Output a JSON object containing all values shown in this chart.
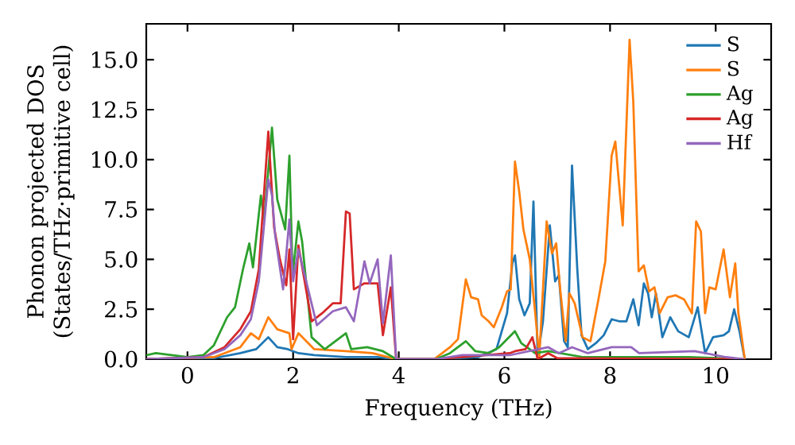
{
  "chart_data": {
    "type": "line",
    "xlabel": "Frequency (THz)",
    "ylabel": "Phonon projected DOS (States/THz·primitive cell)",
    "xlim": [
      -0.78,
      11.05
    ],
    "ylim": [
      0,
      16.8
    ],
    "xticks": [
      0,
      2,
      4,
      6,
      8,
      10
    ],
    "yticks": [
      {
        "value": 0,
        "label": "0.0"
      },
      {
        "value": 2.5,
        "label": "2.5"
      },
      {
        "value": 5,
        "label": "5.0"
      },
      {
        "value": 7.5,
        "label": "7.5"
      },
      {
        "value": 10,
        "label": "10.0"
      },
      {
        "value": 12.5,
        "label": "12.5"
      },
      {
        "value": 15,
        "label": "15.0"
      }
    ],
    "legend": "top right",
    "line_style": "solid",
    "series": [
      {
        "name": "S",
        "color": "#1f77b4",
        "x": [
          -0.78,
          0.5,
          1.0,
          1.3,
          1.53,
          1.7,
          1.9,
          2.1,
          2.4,
          3.0,
          3.6,
          3.95,
          4.7,
          5.5,
          5.85,
          6.05,
          6.15,
          6.2,
          6.28,
          6.38,
          6.48,
          6.55,
          6.63,
          6.73,
          6.86,
          6.96,
          7.03,
          7.13,
          7.2,
          7.28,
          7.38,
          7.46,
          7.58,
          7.73,
          7.88,
          8.03,
          8.17,
          8.31,
          8.44,
          8.54,
          8.64,
          8.72,
          8.79,
          8.87,
          8.99,
          9.14,
          9.29,
          9.49,
          9.66,
          9.8,
          9.95,
          10.15,
          10.25,
          10.35,
          10.45,
          10.55
        ],
        "values": [
          0,
          0.05,
          0.3,
          0.5,
          1.1,
          0.6,
          0.5,
          0.3,
          0.2,
          0.1,
          0.1,
          0,
          0,
          0.1,
          0.5,
          2.3,
          4.8,
          5.2,
          3.0,
          2.2,
          2.8,
          7.9,
          0.1,
          1.9,
          6.7,
          3.9,
          4.2,
          0.9,
          0.6,
          9.7,
          4.5,
          1.2,
          0.5,
          0.8,
          1.2,
          2.0,
          1.9,
          1.9,
          3.0,
          1.7,
          3.8,
          3.3,
          2.1,
          3.3,
          1.1,
          2.1,
          1.4,
          1.1,
          2.6,
          0.3,
          1.1,
          1.2,
          1.4,
          2.5,
          1.4,
          0
        ]
      },
      {
        "name": "S",
        "color": "#ff7f0e",
        "x": [
          -0.78,
          0.5,
          1.0,
          1.2,
          1.35,
          1.53,
          1.7,
          1.93,
          1.97,
          2.1,
          2.4,
          3.0,
          3.5,
          3.95,
          4.67,
          4.97,
          5.12,
          5.27,
          5.37,
          5.5,
          5.57,
          5.7,
          5.8,
          5.95,
          6.05,
          6.12,
          6.2,
          6.28,
          6.36,
          6.48,
          6.58,
          6.66,
          6.8,
          6.9,
          6.98,
          7.06,
          7.16,
          7.23,
          7.33,
          7.48,
          7.63,
          7.78,
          7.91,
          8.03,
          8.1,
          8.24,
          8.37,
          8.44,
          8.54,
          8.64,
          8.74,
          8.84,
          8.94,
          9.09,
          9.24,
          9.4,
          9.55,
          9.63,
          9.72,
          9.8,
          9.88,
          10.0,
          10.15,
          10.27,
          10.37,
          10.43,
          10.55
        ],
        "values": [
          0,
          0.1,
          0.6,
          1.3,
          1.0,
          2.1,
          1.5,
          1.3,
          0.5,
          1.3,
          0.5,
          0.4,
          0.3,
          0,
          0,
          0.6,
          1.0,
          4.0,
          3.1,
          3.0,
          2.2,
          1.9,
          1.6,
          2.6,
          3.4,
          3.5,
          9.9,
          8.4,
          6.5,
          5.0,
          2.4,
          0.1,
          6.9,
          5.3,
          5.8,
          3.4,
          0.9,
          3.3,
          2.8,
          1.1,
          0.9,
          3.0,
          4.9,
          10.2,
          10.9,
          6.7,
          16.0,
          12.9,
          4.4,
          4.7,
          3.4,
          3.6,
          2.3,
          3.1,
          3.2,
          3.0,
          2.3,
          6.9,
          6.4,
          2.3,
          3.6,
          3.5,
          5.5,
          3.1,
          4.8,
          2.3,
          0
        ]
      },
      {
        "name": "Ag",
        "color": "#2ca02c",
        "x": [
          -0.78,
          -0.6,
          -0.3,
          0.0,
          0.3,
          0.5,
          0.75,
          0.9,
          1.05,
          1.17,
          1.24,
          1.39,
          1.45,
          1.6,
          1.7,
          1.85,
          1.93,
          1.99,
          2.1,
          2.17,
          2.35,
          2.6,
          3.0,
          3.1,
          3.4,
          3.7,
          3.95,
          4.7,
          4.97,
          5.27,
          5.45,
          5.7,
          5.9,
          6.2,
          6.32,
          6.58,
          6.83,
          7.5,
          8.5,
          9.5,
          10.5
        ],
        "values": [
          0.2,
          0.3,
          0.2,
          0.1,
          0.2,
          0.7,
          2.1,
          2.6,
          4.5,
          5.8,
          4.6,
          8.2,
          7.0,
          11.6,
          8.0,
          6.5,
          10.2,
          4.2,
          6.9,
          5.9,
          1.1,
          0.5,
          1.3,
          0.5,
          0.6,
          0.4,
          0,
          0,
          0.3,
          0.9,
          0.4,
          0.3,
          0.6,
          1.4,
          0.8,
          0.3,
          0.4,
          0.1,
          0.1,
          0.1,
          0
        ]
      },
      {
        "name": "Ag",
        "color": "#d62728",
        "x": [
          -0.78,
          0.3,
          0.7,
          1.0,
          1.2,
          1.35,
          1.53,
          1.64,
          1.75,
          1.87,
          1.93,
          2.0,
          2.1,
          2.35,
          2.55,
          2.75,
          2.9,
          3.0,
          3.07,
          3.15,
          3.35,
          3.6,
          3.7,
          3.85,
          3.95,
          4.7,
          6.1,
          6.2,
          6.4,
          6.53,
          6.63,
          6.83,
          7.0,
          10.5
        ],
        "values": [
          0,
          0.1,
          0.6,
          1.5,
          2.4,
          4.5,
          11.4,
          6.6,
          5.0,
          3.7,
          5.5,
          1.0,
          5.7,
          1.9,
          2.3,
          2.8,
          2.8,
          7.4,
          7.3,
          3.5,
          3.8,
          3.8,
          1.2,
          3.6,
          0,
          0,
          0.3,
          0.4,
          0.5,
          1.1,
          0,
          0.3,
          0.05,
          0
        ]
      },
      {
        "name": "Hf",
        "color": "#9467bd",
        "x": [
          -0.78,
          0.3,
          0.7,
          1.0,
          1.2,
          1.35,
          1.53,
          1.6,
          1.66,
          1.81,
          1.93,
          2.0,
          2.1,
          2.45,
          2.75,
          3.0,
          3.15,
          3.35,
          3.45,
          3.6,
          3.7,
          3.85,
          3.95,
          4.7,
          5.2,
          6.1,
          6.83,
          7.03,
          7.28,
          7.58,
          8.03,
          8.4,
          8.55,
          9.6,
          10.2,
          10.55
        ],
        "values": [
          0,
          0.1,
          0.5,
          1.2,
          2.0,
          3.9,
          9.0,
          8.2,
          6.2,
          3.5,
          7.0,
          3.9,
          5.5,
          1.7,
          2.4,
          2.6,
          1.9,
          4.9,
          3.8,
          5.0,
          1.8,
          5.2,
          0,
          0,
          0.2,
          0.2,
          0.6,
          0.3,
          0.6,
          0.3,
          0.6,
          0.6,
          0.3,
          0.4,
          0.1,
          0
        ]
      }
    ]
  }
}
